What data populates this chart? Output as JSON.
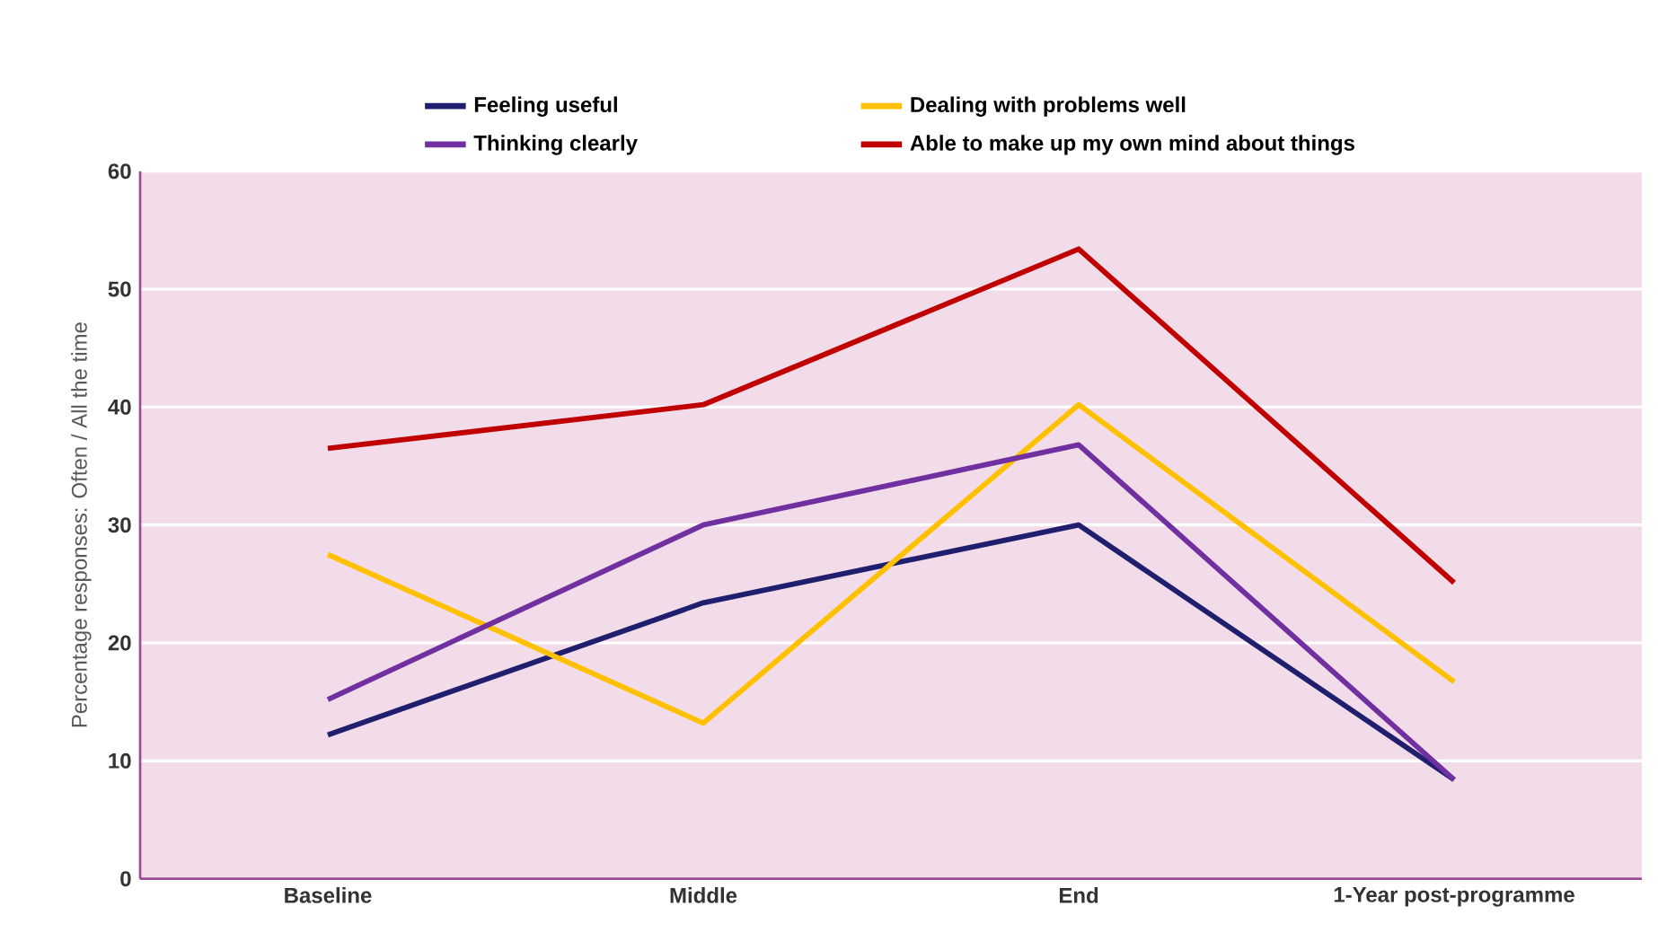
{
  "chart_data": {
    "type": "line",
    "ylabel": "Percentage responses: Often / All the time",
    "categories": [
      "Baseline",
      "Middle",
      "End",
      "1-Year post-programme"
    ],
    "series": [
      {
        "name": "Feeling useful",
        "color": "#1f1f6e",
        "values": [
          12.2,
          23.4,
          30,
          8.4
        ]
      },
      {
        "name": "Dealing with problems well",
        "color": "#ffc000",
        "values": [
          27.5,
          13.2,
          40.2,
          16.7
        ]
      },
      {
        "name": "Thinking clearly",
        "color": "#7030a0",
        "values": [
          15.2,
          30,
          36.8,
          8.4
        ]
      },
      {
        "name": "Able to make up my own mind about things",
        "color": "#c00000",
        "values": [
          36.5,
          40.2,
          53.4,
          25.1
        ]
      }
    ],
    "ylim": [
      0,
      60
    ],
    "yticks": [
      0,
      10,
      20,
      30,
      40,
      50,
      60
    ],
    "grid": "y",
    "legend": "top",
    "marker": "none",
    "line_style": "solid"
  }
}
